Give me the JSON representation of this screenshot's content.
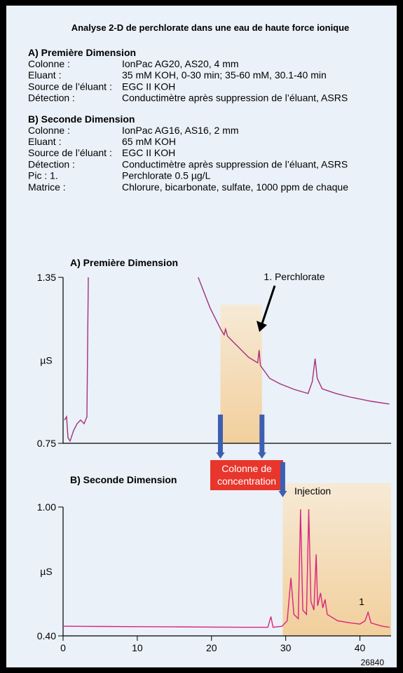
{
  "header": {
    "title": "Analyse 2-D de perchlorate dans une eau de haute force ionique"
  },
  "conditions": [
    {
      "heading": "A) Première Dimension",
      "rows": [
        [
          "Colonne :",
          "IonPac AG20, AS20, 4 mm"
        ],
        [
          "Eluant :",
          "35 mM KOH, 0-30 min; 35-60 mM, 30.1-40 min"
        ],
        [
          "Source de l’éluant :",
          "EGC II KOH"
        ],
        [
          "Détection :",
          "Conductimètre après suppression de l’éluant, ASRS"
        ]
      ]
    },
    {
      "heading": "B) Seconde Dimension",
      "rows": [
        [
          "Colonne :",
          "IonPac AG16, AS16, 2 mm"
        ],
        [
          "Eluant :",
          "65 mM KOH"
        ],
        [
          "Source de l’éluant :",
          "EGC II KOH"
        ],
        [
          "Détection :",
          "Conductimètre après suppression de l’éluant, ASRS"
        ],
        [
          "Pic : 1.",
          "Perchlorate 0.5 µg/L"
        ],
        [
          "Matrice :",
          "Chlorure, bicarbonate, sulfate, 1000 ppm de chaque"
        ]
      ]
    }
  ],
  "chart_data": [
    {
      "type": "line",
      "title": "A) Première Dimension",
      "ylabel": "µS",
      "color": "#a3307c",
      "xlim": [
        0,
        44.2
      ],
      "ylim": [
        0.75,
        1.35
      ],
      "yticks": [
        1.35,
        0.75
      ],
      "highlight": [
        21.2,
        26.8
      ],
      "annotation": "1. Perchlorate",
      "x": [
        0.19,
        0.47,
        0.66,
        0.94,
        1.42,
        1.89,
        2.36,
        2.83,
        3.21,
        3.4,
        10,
        18.21,
        19.81,
        21.23,
        21.7,
        21.89,
        22.17,
        23.58,
        25.0,
        26.23,
        26.42,
        26.6,
        27.83,
        29.25,
        31.13,
        33.02,
        33.58,
        33.96,
        34.25,
        34.91,
        36.79,
        38.68,
        41.51,
        43.96
      ],
      "values": [
        0.834,
        0.846,
        0.77,
        0.758,
        0.796,
        0.821,
        0.834,
        0.821,
        0.846,
        1.35,
        null,
        1.35,
        1.239,
        1.163,
        1.142,
        1.163,
        1.137,
        1.099,
        1.061,
        1.041,
        1.087,
        1.031,
        0.985,
        0.965,
        0.945,
        0.93,
        0.973,
        1.056,
        0.985,
        0.947,
        0.93,
        0.917,
        0.902,
        0.892
      ]
    },
    {
      "type": "line",
      "title": "B) Seconde Dimension",
      "ylabel": "µS",
      "color": "#d9257c",
      "xlim": [
        0,
        44.2
      ],
      "ylim": [
        0.4,
        1.0
      ],
      "yticks": [
        {
          "value": 1.0,
          "label": "1.00"
        },
        {
          "value": 0.4,
          "label": "0.40"
        }
      ],
      "xticks": [
        0,
        10,
        20,
        30,
        40
      ],
      "highlight": [
        29.6,
        44.2
      ],
      "annotation": "Injection",
      "peak_label": "1",
      "column_label": [
        "Colonne de",
        "concentration"
      ],
      "x": [
        0,
        5,
        10,
        15,
        20,
        25,
        27.6,
        28.0,
        28.3,
        29.5,
        30.2,
        30.7,
        31.1,
        31.7,
        32.0,
        32.3,
        32.8,
        33.1,
        33.4,
        33.8,
        34.1,
        34.3,
        34.7,
        35.0,
        35.3,
        35.6,
        37,
        38.8,
        40,
        40.7,
        41.1,
        41.5,
        43,
        44
      ],
      "values": [
        0.445,
        0.444,
        0.443,
        0.442,
        0.441,
        0.44,
        0.44,
        0.49,
        0.44,
        0.445,
        0.47,
        0.67,
        0.5,
        0.48,
        0.99,
        0.52,
        0.5,
        0.99,
        0.56,
        0.52,
        0.78,
        0.54,
        0.6,
        0.53,
        0.57,
        0.5,
        0.47,
        0.46,
        0.455,
        0.47,
        0.51,
        0.46,
        0.445,
        0.44
      ]
    }
  ],
  "figure_id": "26840"
}
